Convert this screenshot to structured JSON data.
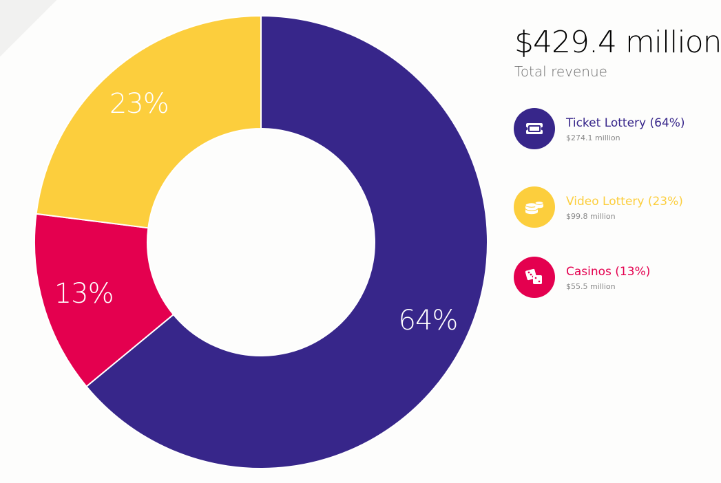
{
  "colors": {
    "ticket": "#37268a",
    "video": "#fcce3d",
    "casinos": "#e4004f",
    "donut_separator": "#ffffff"
  },
  "summary": {
    "total_value": "$429.4 million",
    "total_label": "Total revenue"
  },
  "chart_data": {
    "type": "pie",
    "variant": "donut",
    "start_angle_deg": 0,
    "direction": "clockwise",
    "slices": [
      {
        "name": "Ticket Lottery",
        "percent": 64,
        "value_label": "64%",
        "color": "#37268a"
      },
      {
        "name": "Casinos",
        "percent": 13,
        "value_label": "13%",
        "color": "#e4004f"
      },
      {
        "name": "Video Lottery",
        "percent": 23,
        "value_label": "23%",
        "color": "#fcce3d"
      }
    ]
  },
  "legend": {
    "items": [
      {
        "label": "Ticket Lottery (64%)",
        "amount": "$274.1 million",
        "icon": "ticket-icon",
        "color": "#37268a"
      },
      {
        "label": "Video Lottery (23%)",
        "amount": "$99.8 million",
        "icon": "coins-icon",
        "color": "#fcce3d"
      },
      {
        "label": "Casinos (13%)",
        "amount": "$55.5 million",
        "icon": "dice-icon",
        "color": "#e4004f"
      }
    ]
  }
}
